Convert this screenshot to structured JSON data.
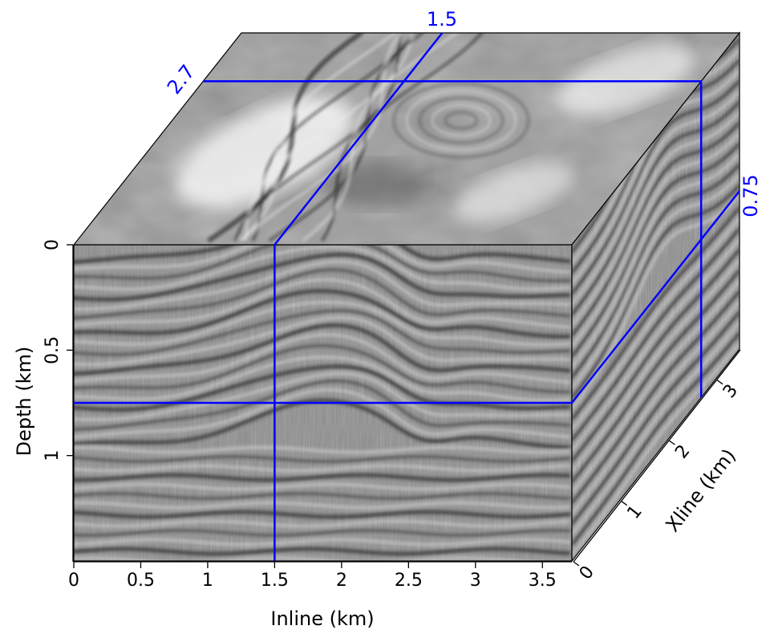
{
  "figure": {
    "colors": {
      "slice_lines": "#0000ff",
      "axes": "#000000",
      "background": "#ffffff",
      "seismic_base": "#8f8f8f"
    },
    "axes": {
      "inline": {
        "title": "Inline (km)",
        "range": [
          0,
          3.72
        ],
        "ticks": [
          {
            "value": 0,
            "label": "0"
          },
          {
            "value": 0.5,
            "label": "0.5"
          },
          {
            "value": 1,
            "label": "1"
          },
          {
            "value": 1.5,
            "label": "1.5"
          },
          {
            "value": 2,
            "label": "2"
          },
          {
            "value": 2.5,
            "label": "2.5"
          },
          {
            "value": 3,
            "label": "3"
          },
          {
            "value": 3.5,
            "label": "3.5"
          }
        ]
      },
      "depth": {
        "title": "Depth (km)",
        "range": [
          0,
          1.5
        ],
        "ticks": [
          {
            "value": 0,
            "label": "0"
          },
          {
            "value": 0.5,
            "label": "0.5"
          },
          {
            "value": 1,
            "label": "1"
          }
        ]
      },
      "xline": {
        "title": "Xline (km)",
        "range": [
          0,
          3.5
        ],
        "ticks": [
          {
            "value": 0,
            "label": "0"
          },
          {
            "value": 1,
            "label": "1"
          },
          {
            "value": 2,
            "label": "2"
          },
          {
            "value": 3,
            "label": "3"
          }
        ]
      }
    },
    "slices": {
      "inline": {
        "value": 1.5,
        "label": "1.5"
      },
      "xline": {
        "value": 2.7,
        "label": "2.7"
      },
      "depth": {
        "value": 0.75,
        "label": "0.75"
      }
    }
  }
}
